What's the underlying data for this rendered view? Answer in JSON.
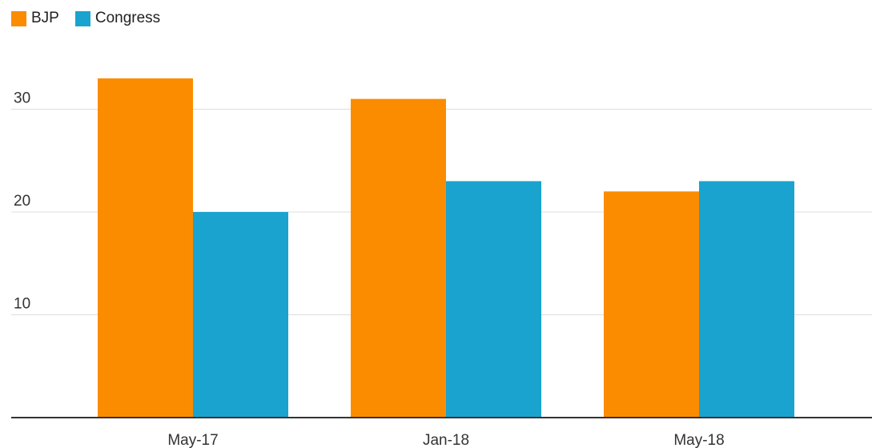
{
  "colors": {
    "bjp": "#fb8c00",
    "congress": "#1aa3ce",
    "grid": "#dddddd",
    "axis": "#333333"
  },
  "chart_data": {
    "type": "bar",
    "categories": [
      "May-17",
      "Jan-18",
      "May-18"
    ],
    "series": [
      {
        "name": "BJP",
        "values": [
          33,
          31,
          22
        ]
      },
      {
        "name": "Congress",
        "values": [
          20,
          23,
          23
        ]
      }
    ],
    "yticks": [
      "10",
      "20",
      "30"
    ],
    "ylim": [
      0,
      35
    ],
    "grid": true,
    "legend": "top-left"
  }
}
